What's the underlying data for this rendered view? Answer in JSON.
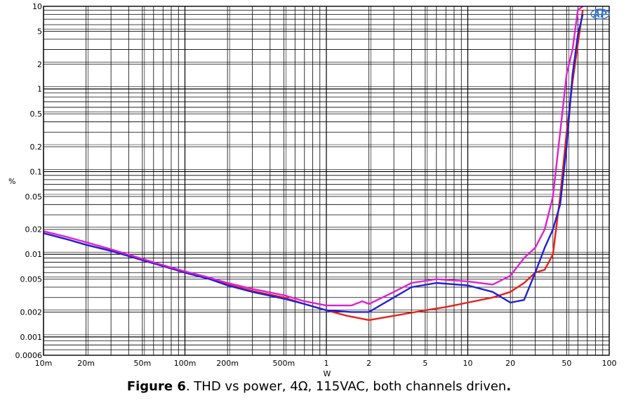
{
  "chart_data": {
    "type": "line",
    "xlabel": "W",
    "ylabel": "%",
    "xscale": "log",
    "yscale": "log",
    "xlim": [
      0.01,
      100
    ],
    "ylim": [
      0.0006,
      10
    ],
    "grid": true,
    "x_ticks": [
      {
        "v": 0.01,
        "label": "10m"
      },
      {
        "v": 0.02,
        "label": "20m"
      },
      {
        "v": 0.05,
        "label": "50m"
      },
      {
        "v": 0.1,
        "label": "100m"
      },
      {
        "v": 0.2,
        "label": "200m"
      },
      {
        "v": 0.5,
        "label": "500m"
      },
      {
        "v": 1,
        "label": "1"
      },
      {
        "v": 2,
        "label": "2"
      },
      {
        "v": 5,
        "label": "5"
      },
      {
        "v": 10,
        "label": "10"
      },
      {
        "v": 20,
        "label": "20"
      },
      {
        "v": 50,
        "label": "50"
      },
      {
        "v": 100,
        "label": "100"
      }
    ],
    "y_ticks": [
      {
        "v": 0.0006,
        "label": "0.0006"
      },
      {
        "v": 0.001,
        "label": "0.001"
      },
      {
        "v": 0.002,
        "label": "0.002"
      },
      {
        "v": 0.005,
        "label": "0.005"
      },
      {
        "v": 0.01,
        "label": "0.01"
      },
      {
        "v": 0.02,
        "label": "0.02"
      },
      {
        "v": 0.05,
        "label": "0.05"
      },
      {
        "v": 0.1,
        "label": "0.1"
      },
      {
        "v": 0.2,
        "label": "0.2"
      },
      {
        "v": 0.5,
        "label": "0.5"
      },
      {
        "v": 1,
        "label": "1"
      },
      {
        "v": 2,
        "label": "2"
      },
      {
        "v": 5,
        "label": "5"
      },
      {
        "v": 10,
        "label": "10"
      }
    ],
    "series": [
      {
        "color": "#e8201a",
        "x": [
          0.01,
          0.015,
          0.02,
          0.03,
          0.05,
          0.07,
          0.1,
          0.15,
          0.2,
          0.3,
          0.5,
          0.7,
          1,
          1.4,
          2,
          3,
          5,
          7,
          10,
          15,
          20,
          25,
          30,
          35,
          40,
          45,
          50,
          55,
          60,
          65
        ],
        "y": [
          0.018,
          0.015,
          0.013,
          0.011,
          0.0085,
          0.0072,
          0.006,
          0.005,
          0.0043,
          0.0036,
          0.003,
          0.0025,
          0.0021,
          0.0018,
          0.0016,
          0.0018,
          0.0021,
          0.0023,
          0.0026,
          0.003,
          0.0035,
          0.0045,
          0.006,
          0.0065,
          0.01,
          0.05,
          0.3,
          1.2,
          3.5,
          9
        ]
      },
      {
        "color": "#2020d8",
        "x": [
          0.01,
          0.015,
          0.02,
          0.03,
          0.05,
          0.07,
          0.1,
          0.15,
          0.2,
          0.3,
          0.5,
          0.7,
          1,
          1.5,
          2,
          3,
          4,
          6,
          10,
          15,
          20,
          25,
          30,
          35,
          40,
          45,
          50,
          55,
          60,
          65
        ],
        "y": [
          0.018,
          0.015,
          0.013,
          0.011,
          0.0085,
          0.0072,
          0.006,
          0.005,
          0.0042,
          0.0035,
          0.0029,
          0.0025,
          0.0021,
          0.002,
          0.002,
          0.003,
          0.004,
          0.0045,
          0.0042,
          0.0035,
          0.0026,
          0.0028,
          0.006,
          0.012,
          0.02,
          0.04,
          0.2,
          1.5,
          4.5,
          8
        ]
      },
      {
        "color": "#e020d0",
        "x": [
          0.01,
          0.015,
          0.02,
          0.03,
          0.05,
          0.07,
          0.1,
          0.15,
          0.2,
          0.3,
          0.5,
          0.7,
          1,
          1.5,
          1.8,
          2,
          3,
          4,
          6,
          10,
          15,
          20,
          25,
          30,
          35,
          40,
          45,
          50,
          55,
          60,
          65
        ],
        "y": [
          0.019,
          0.016,
          0.014,
          0.0115,
          0.0088,
          0.0074,
          0.0062,
          0.0052,
          0.0045,
          0.0038,
          0.0032,
          0.0027,
          0.0024,
          0.0024,
          0.0027,
          0.0025,
          0.0035,
          0.0045,
          0.005,
          0.0047,
          0.0043,
          0.0055,
          0.009,
          0.012,
          0.02,
          0.05,
          0.3,
          1.5,
          3,
          9,
          12
        ]
      }
    ]
  },
  "caption": {
    "label": "Figure 6",
    "text": ". THD vs power, 4Ω, 115VAC, both channels driven",
    "end": "."
  },
  "logo_text": "AP"
}
